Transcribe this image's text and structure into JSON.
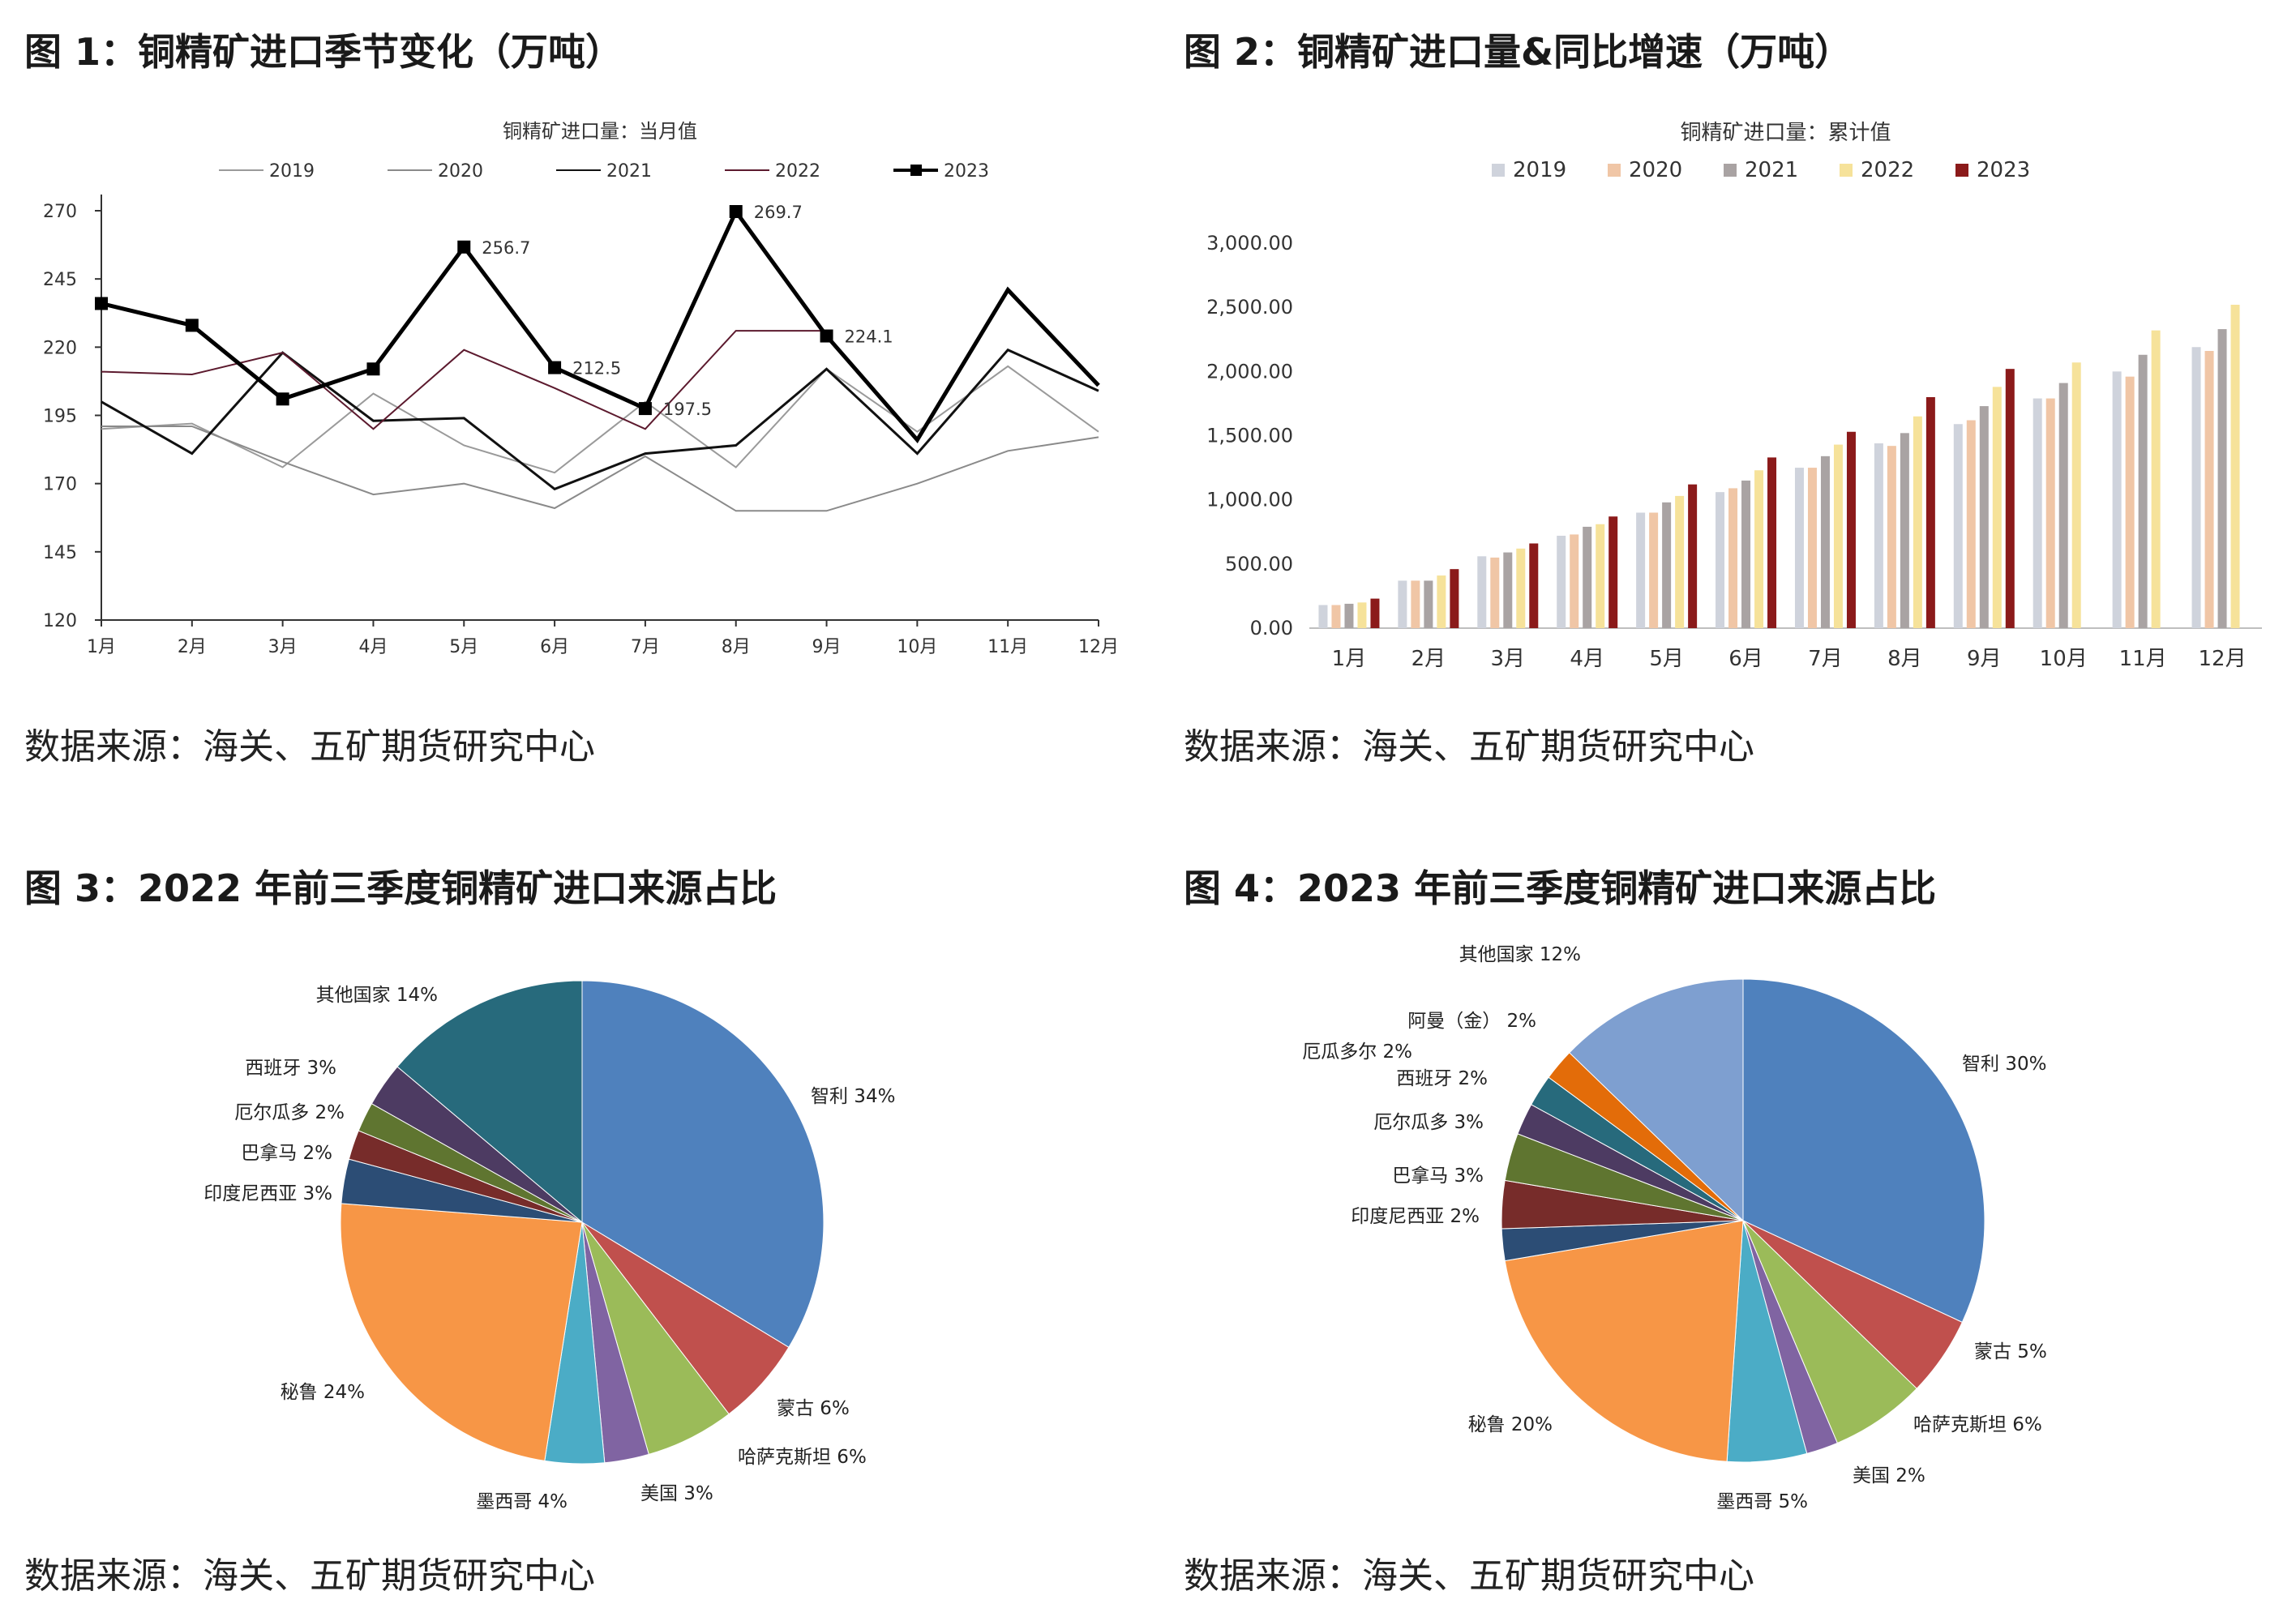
{
  "figures": [
    {
      "title": "图 1：铜精矿进口季节变化（万吨）",
      "source": "数据来源：海关、五矿期货研究中心",
      "chart_data": {
        "type": "line",
        "title": "铜精矿进口量：当月值",
        "categories": [
          "1月",
          "2月",
          "3月",
          "4月",
          "5月",
          "6月",
          "7月",
          "8月",
          "9月",
          "10月",
          "11月",
          "12月"
        ],
        "ylim": [
          120,
          270
        ],
        "yticks": [
          120,
          145,
          170,
          195,
          220,
          245,
          270
        ],
        "legend_position": "top",
        "grid": false,
        "series": [
          {
            "name": "2019",
            "color": "#9a9a9a",
            "values": [
              190,
              192,
              176,
              203,
              184,
              174,
              200,
              176,
              212,
              189,
              213,
              189
            ]
          },
          {
            "name": "2020",
            "color": "#8a8a8a",
            "values": [
              191,
              191,
              178,
              166,
              170,
              161,
              180,
              160,
              160,
              170,
              182,
              187
            ]
          },
          {
            "name": "2021",
            "color": "#111111",
            "values": [
              200,
              181,
              218,
              193,
              194,
              168,
              181,
              184,
              212,
              181,
              219,
              204
            ]
          },
          {
            "name": "2022",
            "color": "#5c1a2e",
            "values": [
              211,
              210,
              218,
              190,
              219,
              205,
              190,
              226,
              226,
              null,
              null,
              null
            ]
          },
          {
            "name": "2023",
            "color": "#000000",
            "marker": "square",
            "values": [
              236,
              228,
              201,
              212,
              256.7,
              212.5,
              197.5,
              269.7,
              224.1,
              186,
              241,
              206
            ]
          }
        ],
        "data_labels": [
          {
            "category": "5月",
            "text": "256.7"
          },
          {
            "category": "6月",
            "text": "212.5"
          },
          {
            "category": "7月",
            "text": "197.5"
          },
          {
            "category": "8月",
            "text": "269.7"
          },
          {
            "category": "9月",
            "text": "224.1"
          }
        ]
      }
    },
    {
      "title": "图 2：铜精矿进口量&同比增速（万吨）",
      "source": "数据来源：海关、五矿期货研究中心",
      "chart_data": {
        "type": "bar",
        "title": "铜精矿进口量：累计值",
        "categories": [
          "1月",
          "2月",
          "3月",
          "4月",
          "5月",
          "6月",
          "7月",
          "8月",
          "9月",
          "10月",
          "11月",
          "12月"
        ],
        "ylim": [
          0,
          3000
        ],
        "yticks": [
          "0.00",
          "500.00",
          "1,000.00",
          "1,500.00",
          "2,000.00",
          "2,500.00",
          "3,000.00"
        ],
        "legend_position": "top",
        "grid": false,
        "series": [
          {
            "name": "2019",
            "color": "#cfd3dc",
            "values": [
              180,
              370,
              560,
              720,
              900,
              1060,
              1250,
              1440,
              1590,
              1790,
              2000,
              2190
            ]
          },
          {
            "name": "2020",
            "color": "#f0c6a6",
            "values": [
              180,
              370,
              550,
              730,
              900,
              1090,
              1250,
              1420,
              1620,
              1790,
              1960,
              2160
            ]
          },
          {
            "name": "2021",
            "color": "#a9a3a3",
            "values": [
              190,
              370,
              590,
              790,
              980,
              1150,
              1340,
              1520,
              1730,
              1910,
              2130,
              2330
            ]
          },
          {
            "name": "2022",
            "color": "#f6e29a",
            "values": [
              200,
              410,
              620,
              810,
              1030,
              1230,
              1430,
              1650,
              1880,
              2070,
              2320,
              2520
            ]
          },
          {
            "name": "2023",
            "color": "#8b1a1a",
            "values": [
              230,
              460,
              660,
              870,
              1120,
              1330,
              1530,
              1800,
              2020,
              null,
              null,
              null
            ]
          }
        ]
      }
    },
    {
      "title": "图 3：2022 年前三季度铜精矿进口来源占比",
      "source": "数据来源：海关、五矿期货研究中心",
      "chart_data": {
        "type": "pie",
        "slices": [
          {
            "label": "智利 34%",
            "value": 34,
            "color": "#4f81bd"
          },
          {
            "label": "蒙古 6%",
            "value": 6,
            "color": "#c0504d"
          },
          {
            "label": "哈萨克斯坦 6%",
            "value": 6,
            "color": "#9bbb59"
          },
          {
            "label": "美国 3%",
            "value": 3,
            "color": "#8064a2"
          },
          {
            "label": "墨西哥 4%",
            "value": 4,
            "color": "#4bacc6"
          },
          {
            "label": "秘鲁 24%",
            "value": 24,
            "color": "#f79646"
          },
          {
            "label": "印度尼西亚 3%",
            "value": 3,
            "color": "#2c4d75"
          },
          {
            "label": "巴拿马 2%",
            "value": 2,
            "color": "#772c2a"
          },
          {
            "label": "厄尔瓜多 2%",
            "value": 2,
            "color": "#5f7530"
          },
          {
            "label": "西班牙 3%",
            "value": 3,
            "color": "#4d3b62"
          },
          {
            "label": "其他国家 14%",
            "value": 14,
            "color": "#276a7c"
          }
        ]
      }
    },
    {
      "title": "图 4：2023 年前三季度铜精矿进口来源占比",
      "source": "数据来源：海关、五矿期货研究中心",
      "chart_data": {
        "type": "pie",
        "slices": [
          {
            "label": "智利 30%",
            "value": 30,
            "color": "#4f81bd"
          },
          {
            "label": "蒙古 5%",
            "value": 5,
            "color": "#c0504d"
          },
          {
            "label": "哈萨克斯坦 6%",
            "value": 6,
            "color": "#9bbb59"
          },
          {
            "label": "美国 2%",
            "value": 2,
            "color": "#8064a2"
          },
          {
            "label": "墨西哥 5%",
            "value": 5,
            "color": "#4bacc6"
          },
          {
            "label": "秘鲁 20%",
            "value": 20,
            "color": "#f79646"
          },
          {
            "label": "印度尼西亚 2%",
            "value": 2,
            "color": "#2c4d75"
          },
          {
            "label": "巴拿马 3%",
            "value": 3,
            "color": "#772c2a"
          },
          {
            "label": "厄尔瓜多 3%",
            "value": 3,
            "color": "#5f7530"
          },
          {
            "label": "西班牙 2%",
            "value": 2,
            "color": "#4d3b62"
          },
          {
            "label": "厄瓜多尔 2%",
            "value": 2,
            "color": "#276a7c"
          },
          {
            "label": "阿曼（金） 2%",
            "value": 2,
            "color": "#e36c09"
          },
          {
            "label": "其他国家 12%",
            "value": 12,
            "color": "#7e9fd0"
          }
        ]
      }
    }
  ]
}
